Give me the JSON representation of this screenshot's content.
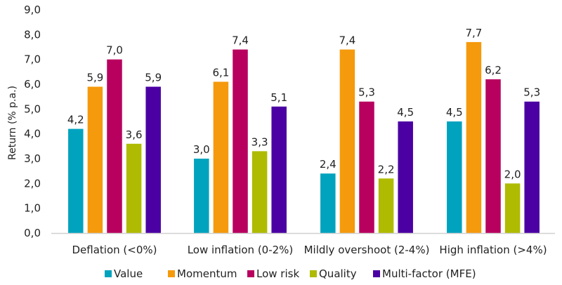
{
  "chart_data": {
    "type": "bar",
    "title": "",
    "xlabel": "",
    "ylabel": "Return (% p.a.)",
    "ylim": [
      0,
      9
    ],
    "yticks": [
      "0,0",
      "1,0",
      "2,0",
      "3,0",
      "4,0",
      "5,0",
      "6,0",
      "7,0",
      "8,0",
      "9,0"
    ],
    "grid": false,
    "legend_position": "bottom",
    "categories": [
      "Deflation  (<0%)",
      "Low inflation (0-2%)",
      "Mildly overshoot (2-4%)",
      "High inflation (>4%)"
    ],
    "series": [
      {
        "name": "Value",
        "color": "#00A3BE",
        "values": [
          4.2,
          3.0,
          2.4,
          4.5
        ],
        "labels": [
          "4,2",
          "3,0",
          "2,4",
          "4,5"
        ]
      },
      {
        "name": "Momentum",
        "color": "#F59A0C",
        "values": [
          5.9,
          6.1,
          7.4,
          7.7
        ],
        "labels": [
          "5,9",
          "6,1",
          "7,4",
          "7,7"
        ]
      },
      {
        "name": "Low risk",
        "color": "#B8005F",
        "values": [
          7.0,
          7.4,
          5.3,
          6.2
        ],
        "labels": [
          "7,0",
          "7,4",
          "5,3",
          "6,2"
        ]
      },
      {
        "name": "Quality",
        "color": "#AFBB00",
        "values": [
          3.6,
          3.3,
          2.2,
          2.0
        ],
        "labels": [
          "3,6",
          "3,3",
          "2,2",
          "2,0"
        ]
      },
      {
        "name": "Multi-factor (MFE)",
        "color": "#4B00A3",
        "values": [
          5.9,
          5.1,
          4.5,
          5.3
        ],
        "labels": [
          "5,9",
          "5,1",
          "4,5",
          "5,3"
        ]
      }
    ]
  }
}
